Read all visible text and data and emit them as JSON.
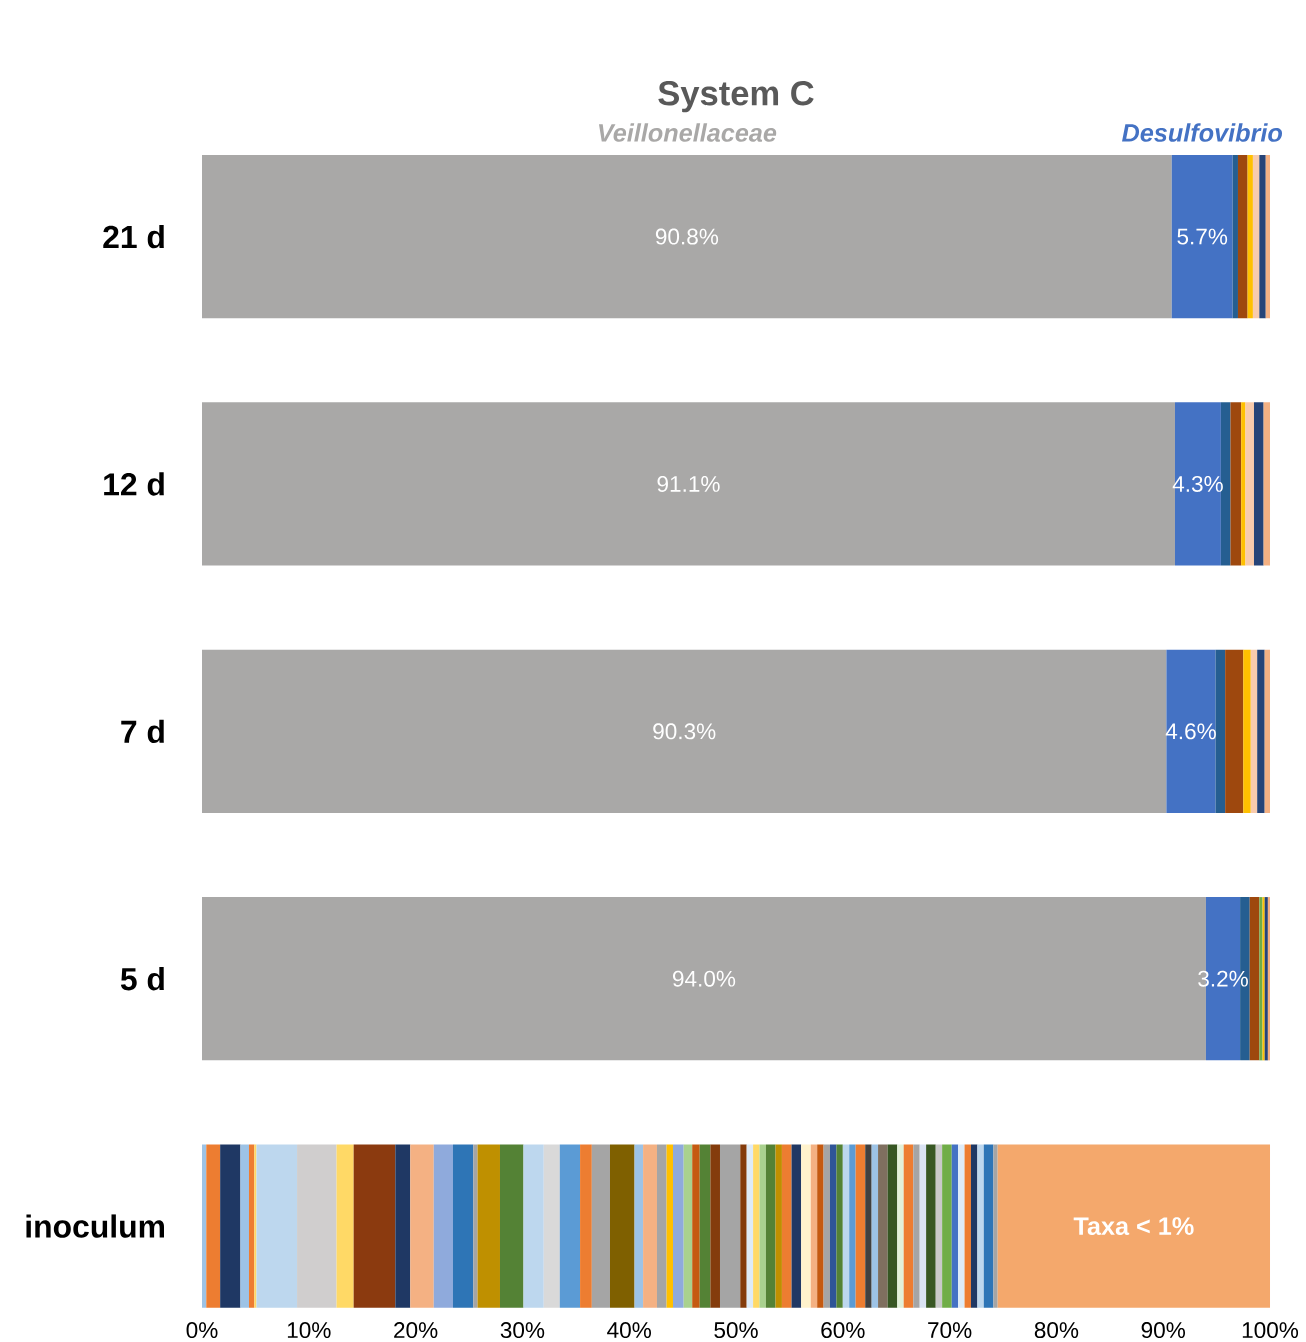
{
  "chart_data": {
    "type": "bar",
    "orientation": "horizontal",
    "stacked": true,
    "title": "System C",
    "categories": [
      "21 d",
      "12 d",
      "7 d",
      "5 d",
      "inoculum"
    ],
    "xlim": [
      0,
      100
    ],
    "xticks": [
      {
        "value": 0,
        "label": "0%"
      },
      {
        "value": 10,
        "label": "10%"
      },
      {
        "value": 20,
        "label": "20%"
      },
      {
        "value": 30,
        "label": "30%"
      },
      {
        "value": 40,
        "label": "40%"
      },
      {
        "value": 50,
        "label": "50%"
      },
      {
        "value": 60,
        "label": "60%"
      },
      {
        "value": 70,
        "label": "70%"
      },
      {
        "value": 80,
        "label": "80%"
      },
      {
        "value": 90,
        "label": "90%"
      },
      {
        "value": 100,
        "label": "100%"
      }
    ],
    "series": [
      {
        "name": "Veillonellaceae",
        "color": "#a9a8a7",
        "values": [
          90.8,
          91.1,
          90.3,
          94.0,
          null
        ],
        "value_labels": [
          "90.8%",
          "91.1%",
          "90.3%",
          "94.0%",
          null
        ]
      },
      {
        "name": "Desulfovibrio",
        "color": "#4472c4",
        "values": [
          5.7,
          4.3,
          4.6,
          3.2,
          null
        ],
        "value_labels": [
          "5.7%",
          "4.3%",
          "4.6%",
          "3.2%",
          null
        ]
      },
      {
        "color": "#255e91",
        "values": [
          0.5,
          0.9,
          0.9,
          0.9,
          null
        ]
      },
      {
        "color": "#9e480e",
        "values": [
          0.9,
          1.0,
          1.7,
          0.9,
          null
        ]
      },
      {
        "color": "#70ad47",
        "values": [
          null,
          null,
          null,
          0.3,
          null
        ]
      },
      {
        "color": "#ffc000",
        "values": [
          0.5,
          0.4,
          0.7,
          0.2,
          null
        ]
      },
      {
        "color": "#f8cbad",
        "values": [
          0.6,
          0.8,
          0.6,
          null,
          null
        ]
      },
      {
        "color": "#264478",
        "values": [
          0.6,
          0.9,
          0.7,
          0.3,
          null
        ]
      },
      {
        "color": "#f4b183",
        "values": [
          0.4,
          0.6,
          0.5,
          0.2,
          null
        ]
      },
      {
        "color": "#9dc3e6",
        "values": [
          null,
          null,
          null,
          null,
          0.4
        ]
      },
      {
        "color": "#ed7d31",
        "values": [
          null,
          null,
          null,
          null,
          1.3
        ]
      },
      {
        "color": "#1f3864",
        "values": [
          null,
          null,
          null,
          null,
          1.9
        ]
      },
      {
        "color": "#9dc3e6",
        "values": [
          null,
          null,
          null,
          null,
          0.8
        ]
      },
      {
        "color": "#ed7d31",
        "values": [
          null,
          null,
          null,
          null,
          0.5
        ]
      },
      {
        "color": "#ffd966",
        "values": [
          null,
          null,
          null,
          null,
          0.2
        ]
      },
      {
        "color": "#bdd7ee",
        "values": [
          null,
          null,
          null,
          null,
          3.8
        ]
      },
      {
        "color": "#d0cece",
        "values": [
          null,
          null,
          null,
          null,
          3.7
        ]
      },
      {
        "color": "#ffd966",
        "values": [
          null,
          null,
          null,
          null,
          1.6
        ]
      },
      {
        "color": "#8b3a0f",
        "values": [
          null,
          null,
          null,
          null,
          3.9
        ]
      },
      {
        "color": "#1f3864",
        "values": [
          null,
          null,
          null,
          null,
          1.4
        ]
      },
      {
        "color": "#f4b183",
        "values": [
          null,
          null,
          null,
          null,
          2.2
        ]
      },
      {
        "color": "#8faadc",
        "values": [
          null,
          null,
          null,
          null,
          1.8
        ]
      },
      {
        "color": "#2e75b6",
        "values": [
          null,
          null,
          null,
          null,
          1.9
        ]
      },
      {
        "color": "#a5a5a5",
        "values": [
          null,
          null,
          null,
          null,
          0.4
        ]
      },
      {
        "color": "#bf9000",
        "values": [
          null,
          null,
          null,
          null,
          2.1
        ]
      },
      {
        "color": "#548235",
        "values": [
          null,
          null,
          null,
          null,
          2.2
        ]
      },
      {
        "color": "#bdd7ee",
        "values": [
          null,
          null,
          null,
          null,
          1.9
        ]
      },
      {
        "color": "#d9d9d9",
        "values": [
          null,
          null,
          null,
          null,
          1.5
        ]
      },
      {
        "color": "#5b9bd5",
        "values": [
          null,
          null,
          null,
          null,
          1.9
        ]
      },
      {
        "color": "#ed7d31",
        "values": [
          null,
          null,
          null,
          null,
          1.1
        ]
      },
      {
        "color": "#a5a5a5",
        "values": [
          null,
          null,
          null,
          null,
          1.7
        ]
      },
      {
        "color": "#7f6000",
        "values": [
          null,
          null,
          null,
          null,
          2.3
        ]
      },
      {
        "color": "#9dc3e6",
        "values": [
          null,
          null,
          null,
          null,
          0.8
        ]
      },
      {
        "color": "#f4b183",
        "values": [
          null,
          null,
          null,
          null,
          1.3
        ]
      },
      {
        "color": "#a5a5a5",
        "values": [
          null,
          null,
          null,
          null,
          0.9
        ]
      },
      {
        "color": "#ffc000",
        "values": [
          null,
          null,
          null,
          null,
          0.6
        ]
      },
      {
        "color": "#8faadc",
        "values": [
          null,
          null,
          null,
          null,
          1.0
        ]
      },
      {
        "color": "#a9d18e",
        "values": [
          null,
          null,
          null,
          null,
          0.8
        ]
      },
      {
        "color": "#c55a11",
        "values": [
          null,
          null,
          null,
          null,
          0.7
        ]
      },
      {
        "color": "#548235",
        "values": [
          null,
          null,
          null,
          null,
          1.0
        ]
      },
      {
        "color": "#843c0c",
        "values": [
          null,
          null,
          null,
          null,
          0.9
        ]
      },
      {
        "color": "#a5a5a5",
        "values": [
          null,
          null,
          null,
          null,
          1.9
        ]
      },
      {
        "color": "#843c0c",
        "values": [
          null,
          null,
          null,
          null,
          0.6
        ]
      },
      {
        "color": "#deebf7",
        "values": [
          null,
          null,
          null,
          null,
          0.6
        ]
      },
      {
        "color": "#ffd966",
        "values": [
          null,
          null,
          null,
          null,
          0.6
        ]
      },
      {
        "color": "#a9d18e",
        "values": [
          null,
          null,
          null,
          null,
          0.6
        ]
      },
      {
        "color": "#548235",
        "values": [
          null,
          null,
          null,
          null,
          0.9
        ]
      },
      {
        "color": "#bf9000",
        "values": [
          null,
          null,
          null,
          null,
          0.6
        ]
      },
      {
        "color": "#ed7d31",
        "values": [
          null,
          null,
          null,
          null,
          0.9
        ]
      },
      {
        "color": "#203864",
        "values": [
          null,
          null,
          null,
          null,
          0.9
        ]
      },
      {
        "color": "#fff2cc",
        "values": [
          null,
          null,
          null,
          null,
          0.9
        ]
      },
      {
        "color": "#f4b183",
        "values": [
          null,
          null,
          null,
          null,
          0.6
        ]
      },
      {
        "color": "#c55a11",
        "values": [
          null,
          null,
          null,
          null,
          0.6
        ]
      },
      {
        "color": "#a5a5a5",
        "values": [
          null,
          null,
          null,
          null,
          0.6
        ]
      },
      {
        "color": "#2f5597",
        "values": [
          null,
          null,
          null,
          null,
          0.6
        ]
      },
      {
        "color": "#548235",
        "values": [
          null,
          null,
          null,
          null,
          0.6
        ]
      },
      {
        "color": "#bdd7ee",
        "values": [
          null,
          null,
          null,
          null,
          0.6
        ]
      },
      {
        "color": "#5b9bd5",
        "values": [
          null,
          null,
          null,
          null,
          0.6
        ]
      },
      {
        "color": "#ed7d31",
        "values": [
          null,
          null,
          null,
          null,
          0.9
        ]
      },
      {
        "color": "#404040",
        "values": [
          null,
          null,
          null,
          null,
          0.6
        ]
      },
      {
        "color": "#9dc3e6",
        "values": [
          null,
          null,
          null,
          null,
          0.6
        ]
      },
      {
        "color": "#7f6f5f",
        "values": [
          null,
          null,
          null,
          null,
          0.9
        ]
      },
      {
        "color": "#375623",
        "values": [
          null,
          null,
          null,
          null,
          0.9
        ]
      },
      {
        "color": "#e2f0d9",
        "values": [
          null,
          null,
          null,
          null,
          0.6
        ]
      },
      {
        "color": "#ed7d31",
        "values": [
          null,
          null,
          null,
          null,
          0.9
        ]
      },
      {
        "color": "#a5a5a5",
        "values": [
          null,
          null,
          null,
          null,
          0.6
        ]
      },
      {
        "color": "#dae3f3",
        "values": [
          null,
          null,
          null,
          null,
          0.6
        ]
      },
      {
        "color": "#385723",
        "values": [
          null,
          null,
          null,
          null,
          0.9
        ]
      },
      {
        "color": "#c9c9c9",
        "values": [
          null,
          null,
          null,
          null,
          0.6
        ]
      },
      {
        "color": "#70ad47",
        "values": [
          null,
          null,
          null,
          null,
          0.9
        ]
      },
      {
        "color": "#4472c4",
        "values": [
          null,
          null,
          null,
          null,
          0.6
        ]
      },
      {
        "color": "#deebf7",
        "values": [
          null,
          null,
          null,
          null,
          0.6
        ]
      },
      {
        "color": "#ed7d31",
        "values": [
          null,
          null,
          null,
          null,
          0.6
        ]
      },
      {
        "color": "#1f3864",
        "values": [
          null,
          null,
          null,
          null,
          0.6
        ]
      },
      {
        "color": "#bdd7ee",
        "values": [
          null,
          null,
          null,
          null,
          0.6
        ]
      },
      {
        "color": "#2e75b6",
        "values": [
          null,
          null,
          null,
          null,
          0.9
        ]
      },
      {
        "color": "#a5a5a5",
        "values": [
          null,
          null,
          null,
          null,
          0.4
        ]
      },
      {
        "name": "Taxa < 1%",
        "color": "#f4a86c",
        "values": [
          null,
          null,
          null,
          null,
          25.5
        ]
      }
    ]
  }
}
